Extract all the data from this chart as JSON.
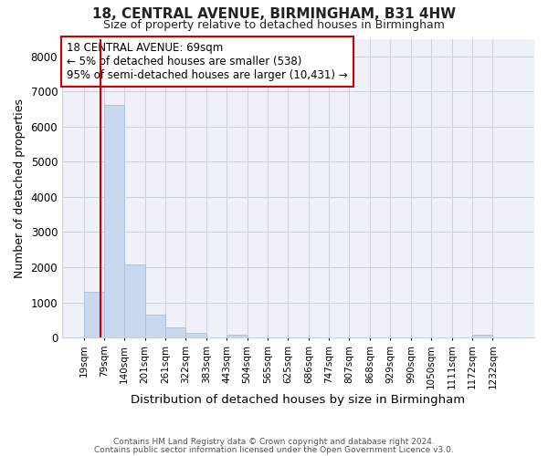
{
  "title": "18, CENTRAL AVENUE, BIRMINGHAM, B31 4HW",
  "subtitle": "Size of property relative to detached houses in Birmingham",
  "xlabel": "Distribution of detached houses by size in Birmingham",
  "ylabel": "Number of detached properties",
  "bar_color": "#c8d8ee",
  "bar_edgecolor": "#a8c0e0",
  "grid_color": "#c8d0dc",
  "bg_color": "#ffffff",
  "plot_bg_color": "#eef2f8",
  "vline_x": 69,
  "vline_color": "#cc0000",
  "annotation_line1": "18 CENTRAL AVENUE: 69sqm",
  "annotation_line2": "← 5% of detached houses are smaller (538)",
  "annotation_line3": "95% of semi-detached houses are larger (10,431) →",
  "annotation_box_color": "#cc0000",
  "ylim": [
    0,
    8500
  ],
  "yticks": [
    0,
    1000,
    2000,
    3000,
    4000,
    5000,
    6000,
    7000,
    8000
  ],
  "bin_edges": [
    19,
    79,
    140,
    201,
    261,
    322,
    383,
    443,
    504,
    565,
    625,
    686,
    747,
    807,
    868,
    929,
    990,
    1050,
    1111,
    1172,
    1232
  ],
  "bin_labels": [
    "19sqm",
    "79sqm",
    "140sqm",
    "201sqm",
    "261sqm",
    "322sqm",
    "383sqm",
    "443sqm",
    "504sqm",
    "565sqm",
    "625sqm",
    "686sqm",
    "747sqm",
    "807sqm",
    "868sqm",
    "929sqm",
    "990sqm",
    "1050sqm",
    "1111sqm",
    "1172sqm",
    "1232sqm"
  ],
  "counts": [
    1310,
    6620,
    2075,
    650,
    280,
    125,
    0,
    90,
    0,
    0,
    0,
    0,
    0,
    0,
    0,
    0,
    0,
    0,
    0,
    75,
    0
  ],
  "footer_line1": "Contains HM Land Registry data © Crown copyright and database right 2024.",
  "footer_line2": "Contains public sector information licensed under the Open Government Licence v3.0."
}
